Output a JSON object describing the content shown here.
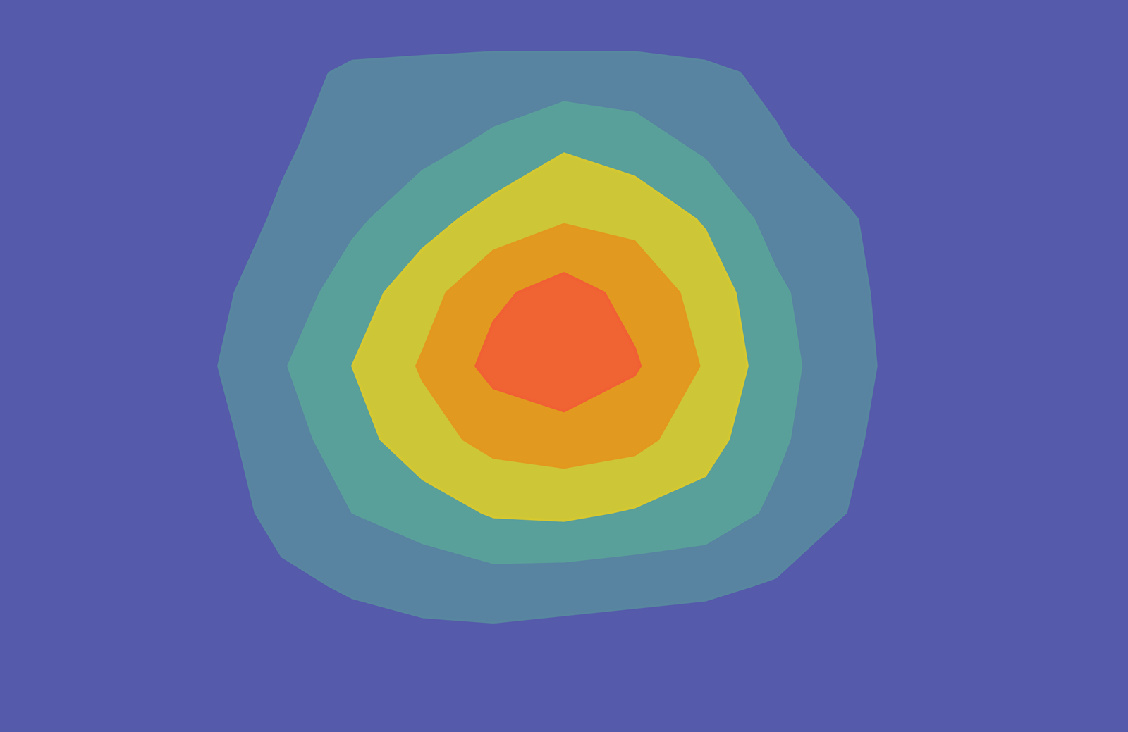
{
  "chart_data": {
    "type": "contour",
    "tick_labels": false,
    "thresholds": [
      1,
      2,
      3,
      4,
      5
    ],
    "colors": [
      "#5886a0",
      "#5aa09a",
      "#d4c832",
      "#e2981e",
      "#f06034"
    ],
    "z": [
      [
        0,
        0,
        0,
        0,
        0,
        0,
        0,
        0,
        0,
        0,
        0,
        0,
        0,
        0,
        0,
        0,
        0
      ],
      [
        0,
        0,
        0,
        0.2,
        0.6,
        1.2,
        1.3,
        1.4,
        1.4,
        1.4,
        1.2,
        0.8,
        0.4,
        0,
        0,
        0,
        0
      ],
      [
        0,
        0,
        0,
        0.4,
        0.9,
        1.3,
        1.7,
        2.2,
        2.9,
        2.5,
        1.8,
        1.1,
        0.6,
        0.2,
        0,
        0,
        0
      ],
      [
        0,
        0,
        0.1,
        0.6,
        1.1,
        1.8,
        2.6,
        3.4,
        3.9,
        3.7,
        2.9,
        1.6,
        1.1,
        0.5,
        0,
        0,
        0
      ],
      [
        0,
        0,
        0.2,
        0.8,
        1.4,
        2.5,
        3.6,
        4.8,
        5.4,
        4.7,
        3.6,
        2.2,
        1.2,
        0.6,
        0.1,
        0,
        0
      ],
      [
        0,
        0,
        0.2,
        0.9,
        1.9,
        3.0,
        4.1,
        5.3,
        5.8,
        5.1,
        3.9,
        2.4,
        1.3,
        0.6,
        0.1,
        0,
        0
      ],
      [
        0,
        0,
        0.2,
        0.7,
        1.5,
        2.6,
        3.6,
        4.3,
        4.5,
        4.3,
        3.4,
        2.2,
        1.2,
        0.4,
        0,
        0,
        0
      ],
      [
        0,
        0,
        0.1,
        0.5,
        1.3,
        2.0,
        2.5,
        3.1,
        3.2,
        2.9,
        2.6,
        1.8,
        1.0,
        0.3,
        0,
        0,
        0
      ],
      [
        0,
        0,
        0,
        0.3,
        0.8,
        1.1,
        1.3,
        1.5,
        1.4,
        1.3,
        1.2,
        0.9,
        0.4,
        0,
        0,
        0,
        0
      ],
      [
        0,
        0,
        0,
        0,
        0.3,
        0.5,
        0.6,
        0.5,
        0.4,
        0.3,
        0.2,
        0,
        0,
        0,
        0,
        0,
        0
      ],
      [
        0,
        0,
        0,
        0,
        0,
        0,
        0,
        0,
        0,
        0,
        0,
        0,
        0,
        0,
        0,
        0,
        0
      ]
    ]
  }
}
